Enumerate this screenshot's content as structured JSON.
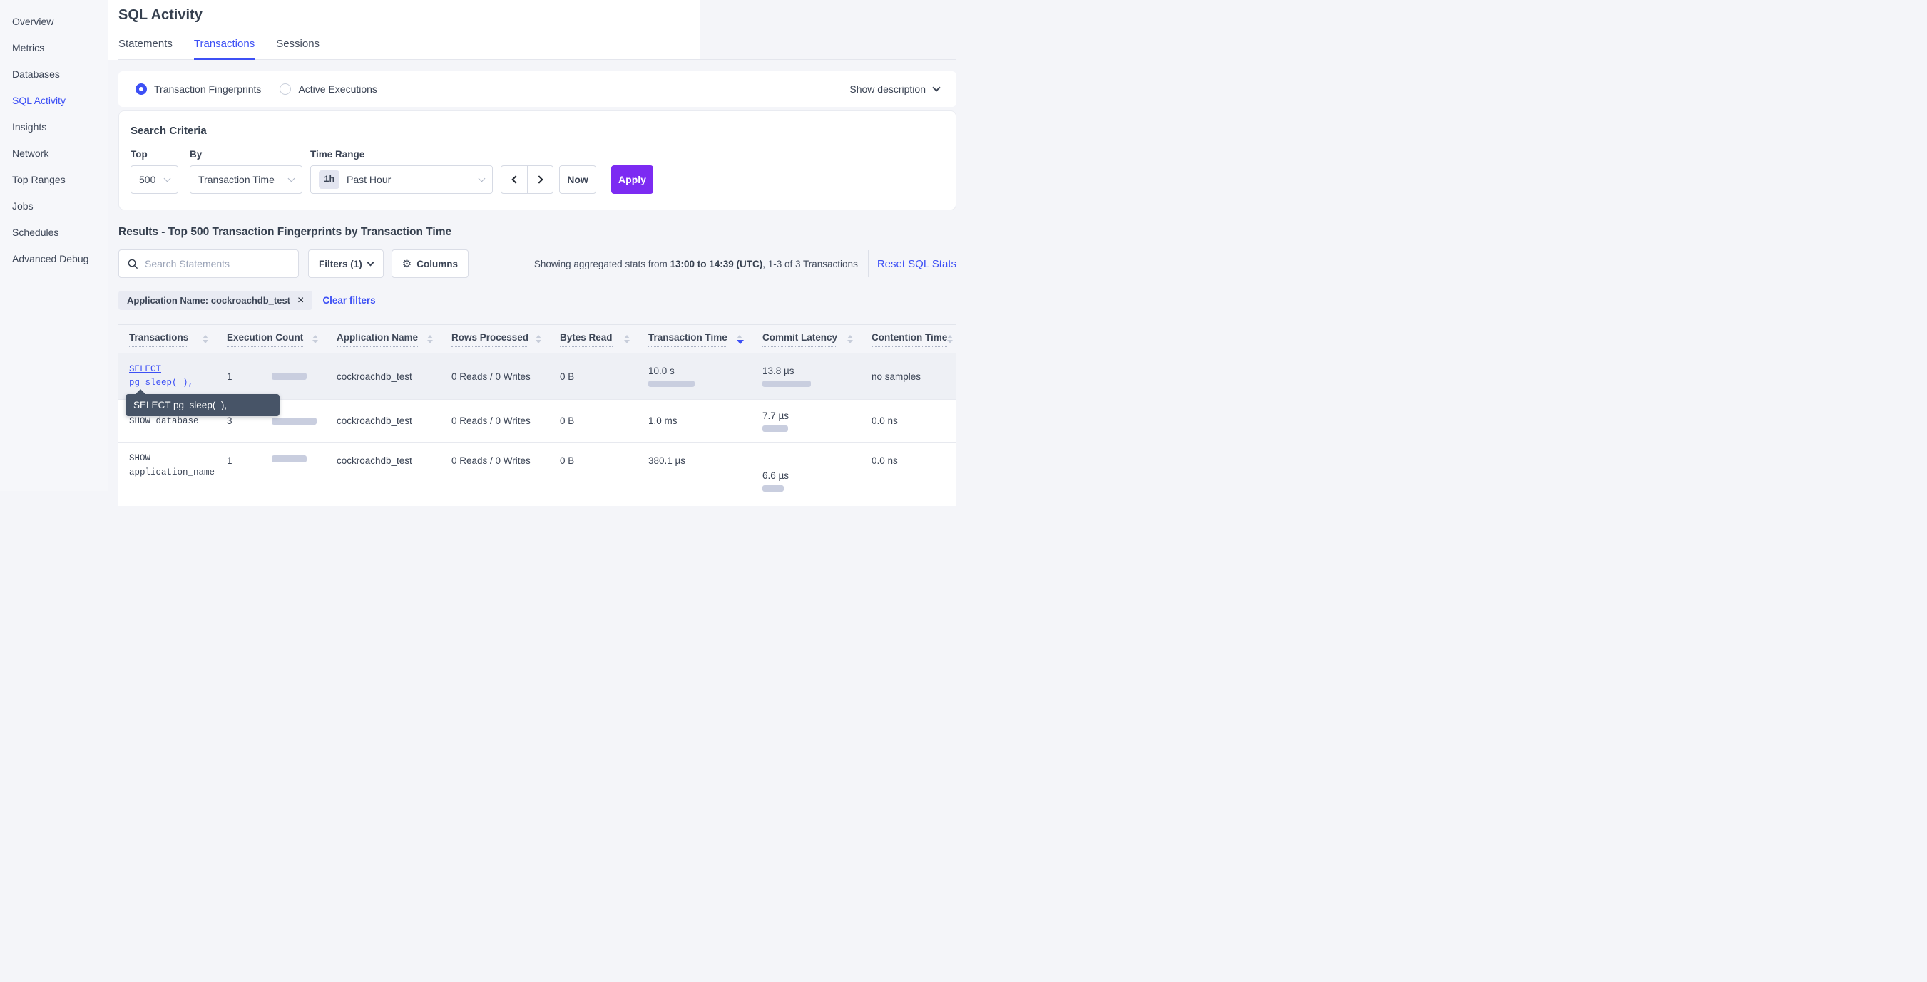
{
  "sidebar": {
    "items": [
      "Overview",
      "Metrics",
      "Databases",
      "SQL Activity",
      "Insights",
      "Network",
      "Top Ranges",
      "Jobs",
      "Schedules",
      "Advanced Debug"
    ],
    "active": "SQL Activity"
  },
  "header": {
    "title": "SQL Activity",
    "tabs": [
      "Statements",
      "Transactions",
      "Sessions"
    ],
    "active_tab": "Transactions"
  },
  "view_mode": {
    "options": [
      "Transaction Fingerprints",
      "Active Executions"
    ],
    "selected": "Transaction Fingerprints",
    "show_description_label": "Show description"
  },
  "search_criteria": {
    "title": "Search Criteria",
    "top": {
      "label": "Top",
      "value": "500"
    },
    "by": {
      "label": "By",
      "value": "Transaction Time"
    },
    "time_range": {
      "label": "Time Range",
      "badge": "1h",
      "value": "Past Hour"
    },
    "now_label": "Now",
    "apply_label": "Apply",
    "icons": {
      "prev": "chevron-left-icon",
      "next": "chevron-right-icon"
    }
  },
  "results": {
    "heading": "Results - Top 500 Transaction Fingerprints by Transaction Time",
    "search_placeholder": "Search Statements",
    "filters_label": "Filters (1)",
    "columns_label": "Columns",
    "columns_icon": "⚙",
    "stats_prefix": "Showing aggregated stats from ",
    "stats_range": "13:00 to 14:39 (UTC)",
    "stats_suffix": ", 1-3 of 3 Transactions",
    "reset_label": "Reset SQL Stats",
    "filter_chip": "Application Name: cockroachdb_test",
    "chip_close": "×",
    "clear_filters_label": "Clear filters"
  },
  "table": {
    "columns": [
      {
        "label": "Transactions",
        "sort": "none"
      },
      {
        "label": "Execution Count",
        "sort": "none"
      },
      {
        "label": "Application Name",
        "sort": "none"
      },
      {
        "label": "Rows Processed",
        "sort": "none"
      },
      {
        "label": "Bytes Read",
        "sort": "none"
      },
      {
        "label": "Transaction Time",
        "sort": "desc"
      },
      {
        "label": "Commit Latency",
        "sort": "none"
      },
      {
        "label": "Contention Time",
        "sort": "none"
      }
    ],
    "rows": [
      {
        "sql_line1": "SELECT",
        "sql_line2": "pg_sleep(_), _",
        "execution_count": "1",
        "exec_bar": 49,
        "application_name": "cockroachdb_test",
        "rows_processed": "0 Reads / 0 Writes",
        "bytes_read": "0 B",
        "transaction_time": "10.0 s",
        "txn_bar": 65,
        "commit_latency": "13.8 µs",
        "commit_bar": 68,
        "contention_time": "no samples"
      },
      {
        "sql_line1": "SHOW database",
        "execution_count": "3",
        "exec_bar": 63,
        "application_name": "cockroachdb_test",
        "rows_processed": "0 Reads / 0 Writes",
        "bytes_read": "0 B",
        "transaction_time": "1.0 ms",
        "commit_latency": "7.7 µs",
        "commit_bar": 36,
        "contention_time": "0.0 ns"
      },
      {
        "sql_line1": "SHOW",
        "sql_line2": "application_name",
        "execution_count": "1",
        "exec_bar": 49,
        "application_name": "cockroachdb_test",
        "rows_processed": "0 Reads / 0 Writes",
        "bytes_read": "0 B",
        "transaction_time": "380.1 µs",
        "commit_latency": "6.6 µs",
        "commit_bar": 30,
        "contention_time": "0.0 ns"
      }
    ]
  },
  "tooltip": {
    "text": "SELECT pg_sleep(_), _"
  },
  "colors": {
    "accent_blue": "#3d50f5",
    "apply_purple": "#7c2bf2",
    "bar_gray": "#c9cedf",
    "tooltip_bg": "#475467",
    "page_bg": "#f4f5f9",
    "row_highlight": "#eef0f5"
  }
}
